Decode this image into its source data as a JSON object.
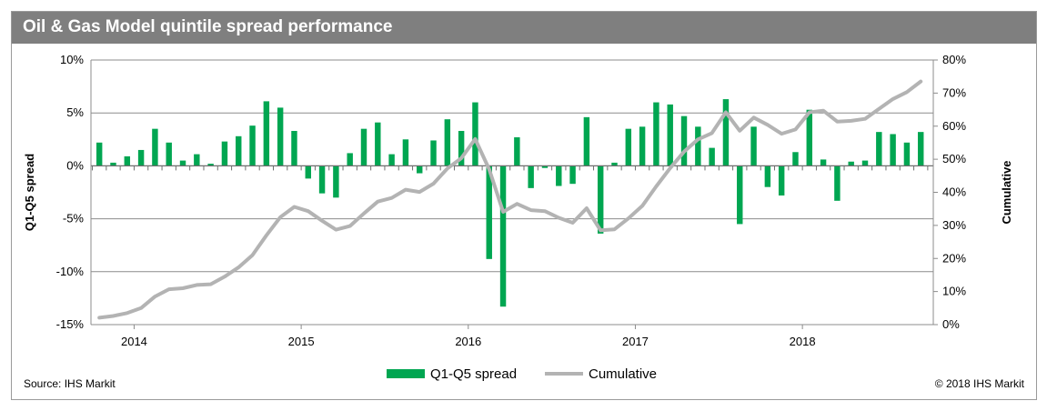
{
  "header": {
    "title": "Oil & Gas Model quintile spread performance"
  },
  "footer": {
    "source": "Source: IHS Markit",
    "copyright": "© 2018 IHS Markit"
  },
  "chart_data": {
    "type": "bar+line",
    "title": "Oil & Gas Model quintile spread performance",
    "ylabel_left": "Q1-Q5 spread",
    "ylabel_right": "Cumulative",
    "ylim_left": [
      -15,
      10
    ],
    "ylim_right": [
      0,
      80
    ],
    "yticks_left": [
      "10%",
      "5%",
      "0%",
      "-5%",
      "-10%",
      "-15%"
    ],
    "yticks_right": [
      "80%",
      "70%",
      "60%",
      "50%",
      "40%",
      "30%",
      "20%",
      "10%",
      "0%"
    ],
    "x_tick_labels": [
      "2014",
      "2015",
      "2016",
      "2017",
      "2018"
    ],
    "x_start": "2013-11",
    "grid": "horizontal",
    "legend_position": "bottom",
    "colors": {
      "bar": "#00a651",
      "line": "#b3b3b3",
      "title_bar": "#7f7f7f"
    },
    "series": [
      {
        "name": "Q1-Q5 spread",
        "kind": "bar",
        "axis": "left",
        "values": [
          2.2,
          0.3,
          0.9,
          1.5,
          3.5,
          2.2,
          0.5,
          1.1,
          0.2,
          2.3,
          2.8,
          3.8,
          6.1,
          5.5,
          3.3,
          -1.2,
          -2.6,
          -3.0,
          1.2,
          3.5,
          4.1,
          1.1,
          2.5,
          -0.7,
          2.4,
          4.4,
          3.3,
          6.0,
          -8.8,
          -13.3,
          2.7,
          -2.1,
          -0.2,
          -1.9,
          -1.7,
          4.6,
          -6.4,
          0.3,
          3.5,
          3.7,
          6.0,
          5.8,
          4.7,
          3.7,
          1.7,
          6.3,
          -5.5,
          3.7,
          -2.0,
          -2.8,
          1.3,
          5.3,
          0.6,
          -3.3,
          0.4,
          0.5,
          3.2,
          3.0,
          2.2,
          3.2
        ]
      },
      {
        "name": "Cumulative",
        "kind": "line",
        "axis": "right",
        "values": [
          2.1,
          2.6,
          3.5,
          5.0,
          8.5,
          10.7,
          11.0,
          12.0,
          12.2,
          14.5,
          17.3,
          21.0,
          27.0,
          32.5,
          35.6,
          34.3,
          31.4,
          28.7,
          29.8,
          33.6,
          37.2,
          38.3,
          40.8,
          40.1,
          42.6,
          47.2,
          50.3,
          56.1,
          47.0,
          34.1,
          36.5,
          34.6,
          34.3,
          32.3,
          30.8,
          35.2,
          28.5,
          28.8,
          32.1,
          35.9,
          41.8,
          47.3,
          52.3,
          56.0,
          57.9,
          64.2,
          58.6,
          62.6,
          60.4,
          57.7,
          59.0,
          64.2,
          64.7,
          61.4,
          61.6,
          62.2,
          65.2,
          68.2,
          70.3,
          73.5
        ]
      }
    ]
  }
}
